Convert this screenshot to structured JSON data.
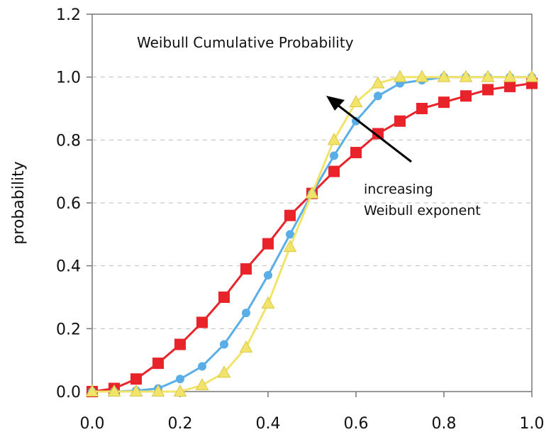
{
  "chart_data": {
    "type": "line",
    "title": "Weibull Cumulative Probability",
    "xlabel": "",
    "ylabel": "probability",
    "xlim": [
      0.0,
      1.0
    ],
    "ylim": [
      0.0,
      1.2
    ],
    "x_ticks": [
      "0.0",
      "0.2",
      "0.4",
      "0.6",
      "0.8",
      "1.0"
    ],
    "y_ticks": [
      "0.0",
      "0.2",
      "0.4",
      "0.6",
      "0.8",
      "1.0",
      "1.2"
    ],
    "grid": "horizontal dashed",
    "annotation": {
      "lines": [
        "increasing",
        "Weibull exponent"
      ],
      "arrow": "points up-left"
    },
    "x": [
      0.0,
      0.05,
      0.1,
      0.15,
      0.2,
      0.25,
      0.3,
      0.35,
      0.4,
      0.45,
      0.5,
      0.55,
      0.6,
      0.65,
      0.7,
      0.75,
      0.8,
      0.85,
      0.9,
      0.95,
      1.0
    ],
    "series": [
      {
        "color": "#e8232a",
        "marker": "square",
        "values": [
          0.0,
          0.01,
          0.04,
          0.09,
          0.15,
          0.22,
          0.3,
          0.39,
          0.47,
          0.56,
          0.63,
          0.7,
          0.76,
          0.82,
          0.86,
          0.9,
          0.92,
          0.94,
          0.96,
          0.97,
          0.98
        ]
      },
      {
        "color": "#5aaee8",
        "marker": "circle",
        "values": [
          0.0,
          0.0,
          0.003,
          0.01,
          0.04,
          0.08,
          0.15,
          0.25,
          0.37,
          0.5,
          0.63,
          0.75,
          0.86,
          0.94,
          0.98,
          0.99,
          1.0,
          1.0,
          1.0,
          1.0,
          1.0
        ]
      },
      {
        "color": "#f2e36a",
        "marker": "triangle",
        "values": [
          0.0,
          0.0,
          0.0,
          0.0,
          0.0,
          0.02,
          0.06,
          0.14,
          0.28,
          0.46,
          0.63,
          0.8,
          0.92,
          0.98,
          1.0,
          1.0,
          1.0,
          1.0,
          1.0,
          1.0,
          1.0
        ]
      }
    ]
  }
}
